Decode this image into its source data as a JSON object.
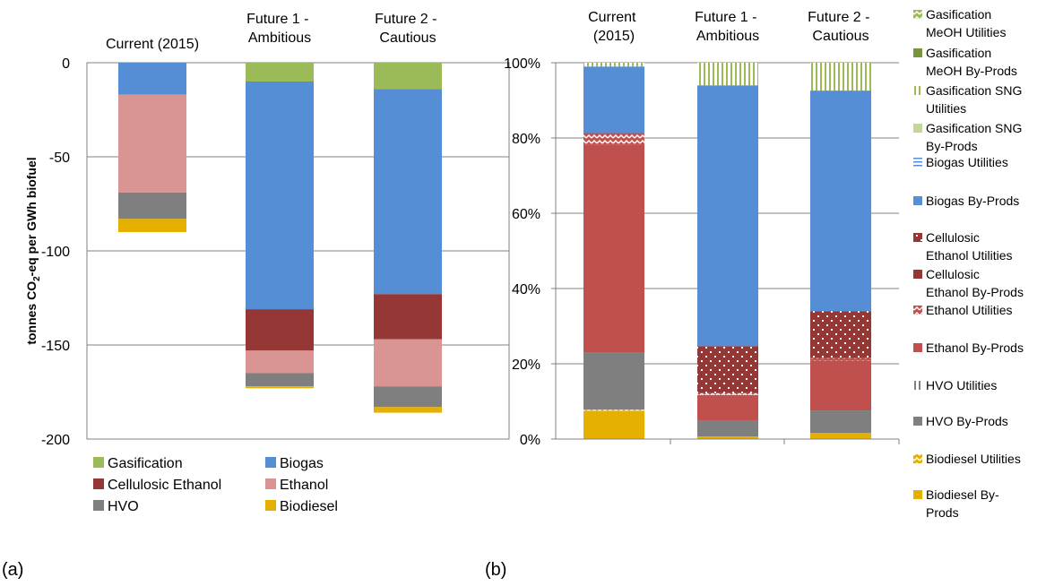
{
  "panel_labels": {
    "a": "(a)",
    "b": "(b)"
  },
  "colors": {
    "gasification": "#9bbb59",
    "biogas": "#558ed5",
    "cellulosic_ethanol": "#953735",
    "ethanol": "#d99594",
    "hvo": "#7f7f7f",
    "biodiesel": "#e6b000",
    "ethanol_byprods_b": "#c0504d",
    "gasification_meoh_byprods": "#77933c",
    "gasification_sng_byprods": "#c3d69b",
    "gasification_utilities_hatch": "#9bbb59"
  },
  "chart_data": [
    {
      "type": "bar",
      "stacked": true,
      "categories": [
        "Current (2015)",
        "Future 1 - Ambitious",
        "Future 2 - Cautious"
      ],
      "ylabel": "tonnes CO2-eq per GWh biofuel",
      "ylim": [
        -200,
        0
      ],
      "yticks": [
        0,
        -50,
        -100,
        -150,
        -200
      ],
      "ytick_labels": [
        "0",
        "-50",
        "-100",
        "-150",
        "-200"
      ],
      "grid": true,
      "legend_position": "bottom",
      "series": [
        {
          "name": "Gasification",
          "key": "gasification",
          "values": [
            0,
            -10,
            -14
          ]
        },
        {
          "name": "Biogas",
          "key": "biogas",
          "values": [
            -17,
            -121,
            -109
          ]
        },
        {
          "name": "Cellulosic Ethanol",
          "key": "cellulosic_ethanol",
          "values": [
            0,
            -22,
            -24
          ]
        },
        {
          "name": "Ethanol",
          "key": "ethanol",
          "values": [
            -52,
            -12,
            -25
          ]
        },
        {
          "name": "HVO",
          "key": "hvo",
          "values": [
            -14,
            -7,
            -11
          ]
        },
        {
          "name": "Biodiesel",
          "key": "biodiesel",
          "values": [
            -7,
            -1,
            -3
          ]
        }
      ]
    },
    {
      "type": "bar",
      "stacked": true,
      "normalized": true,
      "categories": [
        "Current (2015)",
        "Future 1 - Ambitious",
        "Future 2 - Cautious"
      ],
      "ylim": [
        0,
        100
      ],
      "yticks": [
        0,
        20,
        40,
        60,
        80,
        100
      ],
      "ytick_labels": [
        "0%",
        "20%",
        "40%",
        "60%",
        "80%",
        "100%"
      ],
      "grid": true,
      "legend_position": "right",
      "series": [
        {
          "name": "Biodiesel By-Prods",
          "values": [
            7.5,
            0.7,
            1.6
          ]
        },
        {
          "name": "Biodiesel Utilities",
          "values": [
            0.3,
            0,
            0
          ]
        },
        {
          "name": "HVO By-Prods",
          "values": [
            15.2,
            4.2,
            6.0
          ]
        },
        {
          "name": "HVO Utilities",
          "values": [
            0,
            0,
            0
          ]
        },
        {
          "name": "Ethanol By-Prods",
          "values": [
            55.3,
            6.8,
            13.2
          ]
        },
        {
          "name": "Ethanol Utilities",
          "values": [
            3.0,
            0.5,
            0.7
          ]
        },
        {
          "name": "Cellulosic Ethanol By-Prods",
          "values": [
            0,
            12.5,
            12.5
          ]
        },
        {
          "name": "Cellulosic Ethanol Utilities",
          "values": [
            0,
            0,
            0
          ]
        },
        {
          "name": "Biogas By-Prods",
          "values": [
            17.7,
            69.3,
            58.6
          ]
        },
        {
          "name": "Biogas Utilities",
          "values": [
            0,
            0,
            0
          ]
        },
        {
          "name": "Gasification SNG By-Prods",
          "values": [
            0,
            0,
            0
          ]
        },
        {
          "name": "Gasification SNG Utilities",
          "values": [
            1.0,
            6.0,
            7.4
          ]
        },
        {
          "name": "Gasification MeOH By-Prods",
          "values": [
            0,
            0,
            0
          ]
        },
        {
          "name": "Gasification MeOH Utilities",
          "values": [
            0,
            0,
            0
          ]
        }
      ],
      "legend_entries": [
        {
          "label": "Gasification MeOH Utilities",
          "lines": [
            "Gasification",
            "MeOH Utilities"
          ],
          "color": "#9bbb59",
          "pattern": "zigzag"
        },
        {
          "label": "Gasification MeOH By-Prods",
          "lines": [
            "Gasification",
            "MeOH By-Prods"
          ],
          "color": "#77933c",
          "pattern": "solid"
        },
        {
          "label": "Gasification SNG Utilities",
          "lines": [
            "Gasification SNG",
            "Utilities"
          ],
          "color": "#9bbb59",
          "pattern": "vlines"
        },
        {
          "label": "Gasification SNG By-Prods",
          "lines": [
            "Gasification SNG",
            "By-Prods"
          ],
          "color": "#c3d69b",
          "pattern": "solid"
        },
        {
          "label": "Biogas Utilities",
          "lines": [
            "Biogas Utilities"
          ],
          "color": "#558ed5",
          "pattern": "hlines"
        },
        {
          "label": "Biogas By-Prods",
          "lines": [
            "Biogas By-Prods"
          ],
          "color": "#558ed5",
          "pattern": "solid"
        },
        {
          "label": "Cellulosic Ethanol Utilities",
          "lines": [
            "Cellulosic",
            "Ethanol Utilities"
          ],
          "color": "#953735",
          "pattern": "dots"
        },
        {
          "label": "Cellulosic Ethanol By-Prods",
          "lines": [
            "Cellulosic",
            "Ethanol By-Prods"
          ],
          "color": "#953735",
          "pattern": "solid"
        },
        {
          "label": "Ethanol Utilities",
          "lines": [
            "Ethanol Utilities"
          ],
          "color": "#c0504d",
          "pattern": "zigzag"
        },
        {
          "label": "Ethanol By-Prods",
          "lines": [
            "Ethanol By-Prods"
          ],
          "color": "#c0504d",
          "pattern": "solid"
        },
        {
          "label": "HVO Utilities",
          "lines": [
            "HVO Utilities"
          ],
          "color": "#7f7f7f",
          "pattern": "vlines"
        },
        {
          "label": "HVO By-Prods",
          "lines": [
            "HVO By-Prods"
          ],
          "color": "#7f7f7f",
          "pattern": "solid"
        },
        {
          "label": "Biodiesel Utilities",
          "lines": [
            "Biodiesel Utilities"
          ],
          "color": "#e6b000",
          "pattern": "zigzag"
        },
        {
          "label": "Biodiesel By-Prods",
          "lines": [
            "Biodiesel By-",
            "Prods"
          ],
          "color": "#e6b000",
          "pattern": "solid"
        }
      ]
    }
  ]
}
